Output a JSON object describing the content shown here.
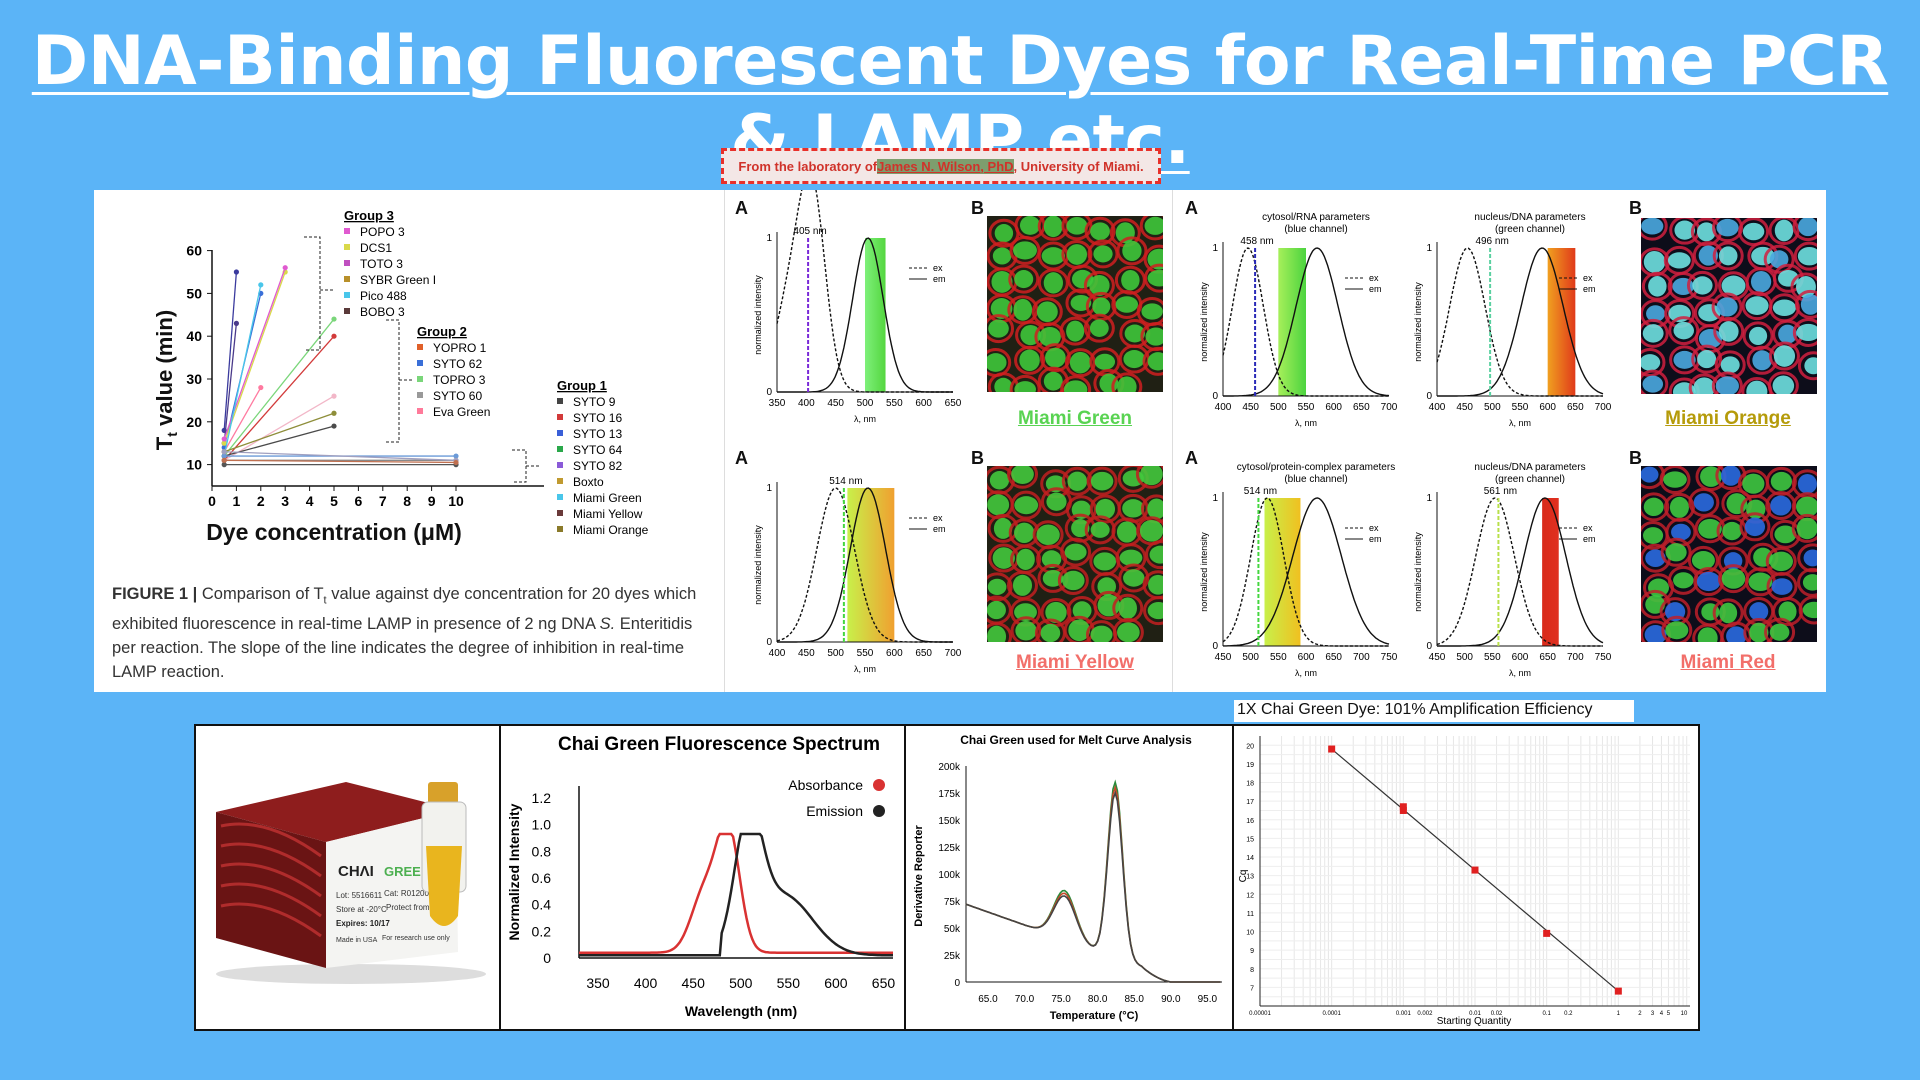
{
  "slide": {
    "title": "DNA-Binding Fluorescent Dyes for Real-Time PCR & LAMP etc."
  },
  "credit": {
    "prefix": "From the laboratory of ",
    "name": "James N. Wilson, PhD",
    "suffix": ", University of Miami."
  },
  "figure1": {
    "caption_bold": "FIGURE 1 |",
    "caption_a": " Comparison of T",
    "caption_sub": "t",
    "caption_b": " value against dye concentration for 20 dyes which exhibited fluorescence in real-time LAMP in presence of 2 ng DNA ",
    "caption_italic": "S.",
    "caption_c": " Enteritidis per reaction. The slope of the line indicates the degree of inhibition in real-time LAMP reaction.",
    "ylabel": "T",
    "ylabel_sub": "t",
    "ylabel_rest": " value (min)",
    "xlabel": "Dye concentration (μM)",
    "yticks": [
      "10",
      "20",
      "30",
      "40",
      "50",
      "60"
    ],
    "xticks": [
      "0",
      "1",
      "2",
      "3",
      "4",
      "5",
      "6",
      "7",
      "8",
      "9",
      "10"
    ],
    "group3": {
      "title": "Group 3",
      "items": [
        "POPO 3",
        "DCS1",
        "TOTO 3",
        "SYBR Green I",
        "Pico 488",
        "BOBO 3"
      ]
    },
    "group2": {
      "title": "Group 2",
      "items": [
        "YOPRO 1",
        "SYTO 62",
        "TOPRO 3",
        "SYTO 60",
        "Eva Green"
      ]
    },
    "group1": {
      "title": "Group 1",
      "items": [
        "SYTO 9",
        "SYTO 16",
        "SYTO 13",
        "SYTO 64",
        "SYTO 82",
        "Boxto",
        "Miami Green",
        "Miami Yellow",
        "Miami Orange"
      ]
    }
  },
  "miami": {
    "A": "A",
    "B": "B",
    "ex": "ex",
    "em": "em",
    "lambda": "λ, nm",
    "norm": "normalized intensity",
    "green": {
      "name": "Miami Green",
      "peak": "405 nm",
      "xticks": [
        "350",
        "400",
        "450",
        "500",
        "550",
        "600",
        "650"
      ]
    },
    "yellow": {
      "name": "Miami Yellow",
      "peak": "514 nm",
      "xticks": [
        "400",
        "450",
        "500",
        "550",
        "600",
        "650",
        "700"
      ]
    },
    "orange": {
      "name": "Miami Orange",
      "left_title": "cytosol/RNA parameters",
      "left_sub": "(blue channel)",
      "left_peak": "458 nm",
      "right_title": "nucleus/DNA parameters",
      "right_sub": "(green channel)",
      "right_peak": "496 nm",
      "xticks_left": [
        "400",
        "450",
        "500",
        "550",
        "600",
        "650",
        "700"
      ],
      "xticks_right": [
        "400",
        "450",
        "500",
        "550",
        "600",
        "650",
        "700"
      ]
    },
    "red": {
      "name": "Miami Red",
      "left_title": "cytosol/protein-complex parameters",
      "left_sub": "(blue channel)",
      "left_peak": "514 nm",
      "right_title": "nucleus/DNA parameters",
      "right_sub": "(green channel)",
      "right_peak": "561 nm",
      "xticks_left": [
        "450",
        "500",
        "550",
        "600",
        "650",
        "700",
        "750"
      ],
      "xticks_right": [
        "450",
        "500",
        "550",
        "600",
        "650",
        "700",
        "750"
      ]
    },
    "y0": "0",
    "y1": "1"
  },
  "product": {
    "brand": "CHΛI",
    "name": "GREEN 20x",
    "lot": "Lot: 5516611",
    "cat": "Cat: R01200M",
    "store": "Store at -20°C",
    "protect": "Protect from light",
    "expires": "Expires: 10/17",
    "made": "Made in USA",
    "research": "For research use only"
  },
  "spectrum": {
    "title": "Chai Green Fluorescence Spectrum",
    "ylabel": "Normalized Intensity",
    "xlabel": "Wavelength (nm)",
    "legend_abs": "Absorbance",
    "legend_em": "Emission",
    "yticks": [
      "0",
      "0.2",
      "0.4",
      "0.6",
      "0.8",
      "1.0",
      "1.2"
    ],
    "xticks": [
      "350",
      "400",
      "450",
      "500",
      "550",
      "600",
      "650"
    ],
    "colors": {
      "abs": "#d93232",
      "em": "#222222"
    }
  },
  "melt": {
    "title": "Chai Green used for Melt Curve Analysis",
    "ylabel": "Derivative Reporter",
    "xlabel": "Temperature (°C)",
    "yticks": [
      "0",
      "25k",
      "50k",
      "75k",
      "100k",
      "125k",
      "150k",
      "175k",
      "200k"
    ],
    "xticks": [
      "65.0",
      "70.0",
      "75.0",
      "80.0",
      "85.0",
      "90.0",
      "95.0"
    ]
  },
  "efficiency": {
    "title": "1X Chai Green Dye: 101% Amplification Efficiency",
    "ylabel": "Cq",
    "xlabel": "Starting Quantity",
    "yticks": [
      "7",
      "8",
      "9",
      "10",
      "11",
      "12",
      "13",
      "14",
      "15",
      "16",
      "17",
      "18",
      "19",
      "20"
    ],
    "xticks": [
      "0.00001",
      "0.0001",
      "0.001",
      "0.002",
      "0.01",
      "0.02",
      "0.1",
      "0.2",
      "1",
      "2",
      "3",
      "4",
      "5",
      "10"
    ],
    "points": [
      {
        "x": 0.0001,
        "y": 19.8
      },
      {
        "x": 0.001,
        "y": 16.5
      },
      {
        "x": 0.001,
        "y": 16.7
      },
      {
        "x": 0.01,
        "y": 13.3
      },
      {
        "x": 0.1,
        "y": 9.9
      },
      {
        "x": 1,
        "y": 6.8
      }
    ]
  }
}
